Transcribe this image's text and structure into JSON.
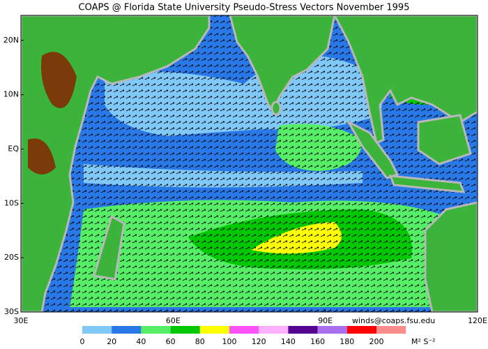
{
  "header": {
    "title": "COAPS @ Florida State University Pseudo-Stress Vectors  November 1995"
  },
  "map": {
    "lon_range": [
      30,
      120
    ],
    "lat_range": [
      -30,
      24.6
    ],
    "lat_ticks": [
      {
        "value": 20,
        "label": "20N"
      },
      {
        "value": 10,
        "label": "10N"
      },
      {
        "value": 0,
        "label": "EQ"
      },
      {
        "value": -10,
        "label": "10S"
      },
      {
        "value": -20,
        "label": "20S"
      },
      {
        "value": -30,
        "label": "30S"
      }
    ],
    "lon_ticks": [
      {
        "value": 30,
        "label": "30E"
      },
      {
        "value": 60,
        "label": "60E"
      },
      {
        "value": 90,
        "label": "90E"
      },
      {
        "value": 120,
        "label": "120E"
      }
    ]
  },
  "credit": "winds@coaps.fsu.edu",
  "colorbar": {
    "ticks": [
      0,
      20,
      40,
      60,
      80,
      100,
      120,
      140,
      160,
      180,
      200
    ],
    "colors": [
      "#80c8f8",
      "#2878e8",
      "#55ee66",
      "#00c800",
      "#ffff00",
      "#ff50ff",
      "#ffb0ff",
      "#550090",
      "#a870f0",
      "#ff0000",
      "#ff8c8c"
    ],
    "units": "M² S⁻²"
  }
}
